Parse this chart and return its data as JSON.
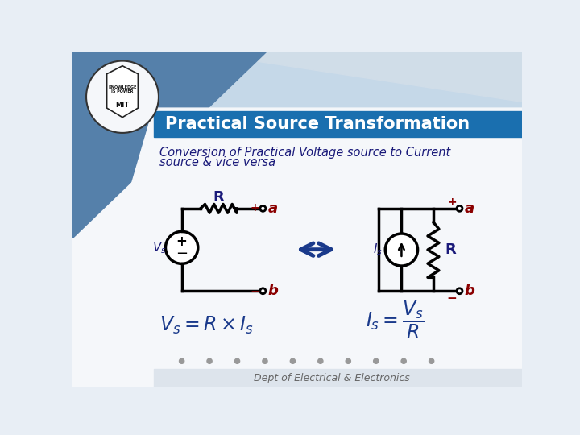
{
  "title": "Practical Source Transformation",
  "subtitle_line1": "Conversion of Practical Voltage source to Current",
  "subtitle_line2": "source & vice versa",
  "title_bg_color": "#1a6faf",
  "title_text_color": "#ffffff",
  "subtitle_color": "#1a1a7a",
  "bg_color": "#e8eef5",
  "white_bg_color": "#f5f7fa",
  "circuit_color": "#000000",
  "label_dark": "#1a1a7a",
  "label_red": "#8b0000",
  "arrow_color": "#1a3a8b",
  "formula_color": "#1a3a8b",
  "footer_text": "Dept of Electrical & Electronics",
  "footer_color": "#666666",
  "dot_color": "#999999",
  "tri1_color": "#b0c8de",
  "tri2_color": "#5580aa",
  "tri3_color": "#c5d8e8"
}
